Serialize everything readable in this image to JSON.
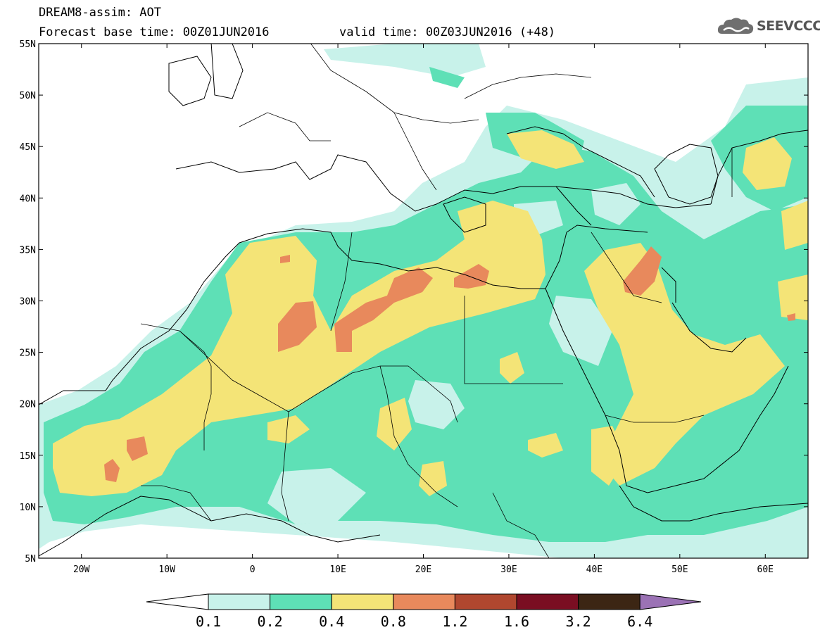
{
  "header": {
    "title_line1": "DREAM8-assim: AOT",
    "title_line2": "Forecast base time: 00Z01JUN2016",
    "valid_time": "valid time: 00Z03JUN2016 (+48)",
    "logo_text": "SEEVCCC"
  },
  "map": {
    "lat_labels": [
      "55N",
      "50N",
      "45N",
      "40N",
      "35N",
      "30N",
      "25N",
      "20N",
      "15N",
      "10N",
      "5N"
    ],
    "lon_labels": [
      "20W",
      "10W",
      "0",
      "10E",
      "20E",
      "30E",
      "40E",
      "50E",
      "60E"
    ],
    "extent": {
      "lon_min": -25,
      "lon_max": 65,
      "lat_min": 5,
      "lat_max": 55
    }
  },
  "colorbar": {
    "colors": [
      "#ffffff",
      "#c8f2ea",
      "#5ee0b6",
      "#f4e477",
      "#e8895c",
      "#b0472f",
      "#7a0e22",
      "#3c2614",
      "#9b72b5"
    ],
    "labels": [
      "0.1",
      "0.2",
      "0.4",
      "0.8",
      "1.2",
      "1.6",
      "3.2",
      "6.4"
    ]
  },
  "colors": {
    "level_0_1": "#c8f2ea",
    "level_0_2": "#5ee0b6",
    "level_0_4": "#f4e477",
    "level_0_8": "#e8895c",
    "level_1_2": "#b0472f"
  }
}
